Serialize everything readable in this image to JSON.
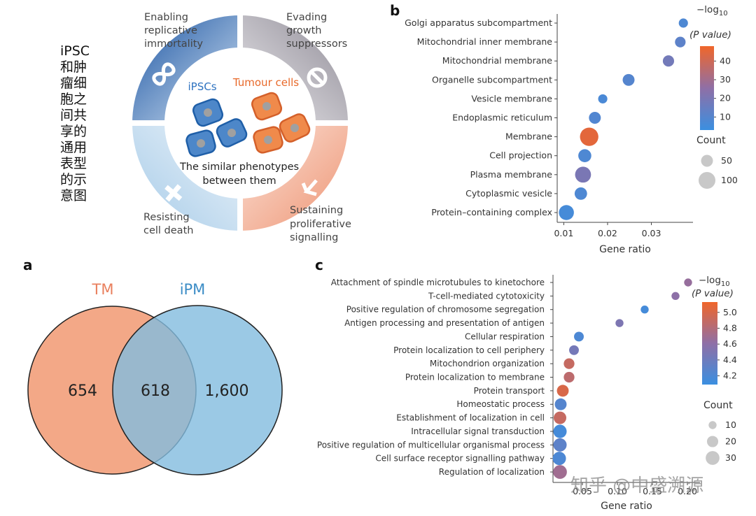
{
  "side_caption": "iPSC和肿瘤细胞之间共享的通用表型的示意图",
  "diagram": {
    "quadrants": [
      [
        "Enabling",
        "replicative",
        "immortality"
      ],
      [
        "Evading",
        "growth",
        "suppressors"
      ],
      [
        "Resisting",
        "cell death"
      ],
      [
        "Sustaining",
        "proliferative",
        "signalling"
      ]
    ],
    "ipsc_label": "iPSCs",
    "tumour_label": "Tumour cells",
    "center_text": [
      "The similar phenotypes",
      "between them"
    ]
  },
  "venn": {
    "panel_label": "a",
    "set_labels": [
      "TM",
      "iPM"
    ],
    "counts": [
      "654",
      "618",
      "1,600"
    ]
  },
  "watermark": "知乎 @中盛溯源",
  "chart_data": [
    {
      "type": "scatter",
      "panel_label": "b",
      "categories": [
        "Golgi apparatus subcompartment",
        "Mitochondrial inner membrane",
        "Mitochondrial membrane",
        "Organelle subcompartment",
        "Vesicle membrane",
        "Endoplasmic reticulum",
        "Membrane",
        "Cell projection",
        "Plasma membrane",
        "Cytoplasmic vesicle",
        "Protein–containing complex"
      ],
      "values": [
        0.0373,
        0.0366,
        0.0339,
        0.0248,
        0.0189,
        0.0171,
        0.0158,
        0.0148,
        0.0144,
        0.0139,
        0.0106
      ],
      "pvalue_log": [
        8,
        12,
        18,
        10,
        7,
        9,
        45,
        8,
        20,
        8,
        6
      ],
      "counts": [
        30,
        40,
        45,
        50,
        30,
        50,
        120,
        60,
        90,
        55,
        80
      ],
      "xlabel": "Gene ratio",
      "xlim": [
        0.0085,
        0.0395
      ],
      "xticks": [
        0.01,
        0.02,
        0.03
      ],
      "colorbar": {
        "title": "−log",
        "title_sub": "10",
        "title_tail": "(P value)",
        "lim": [
          3,
          48
        ],
        "ticks": [
          10,
          20,
          30,
          40
        ],
        "colormap": [
          "#3b8fe0",
          "#8f6fa6",
          "#f0662a"
        ]
      },
      "size_legend": {
        "title": "Count",
        "ticks": [
          50,
          100
        ]
      }
    },
    {
      "type": "scatter",
      "panel_label": "c",
      "categories": [
        "Attachment of spindle microtubules to kinetochore",
        "T-cell-mediated cytotoxicity",
        "Positive regulation of chromosome segregation",
        "Antigen processing and presentation of  antigen",
        "Cellular respiration",
        "Protein localization to cell periphery",
        "Mitochondrion organization",
        "Protein localization to membrane",
        "Protein transport",
        "Homeostatic process",
        "Establishment of localization in cell",
        "Intracellular signal transduction",
        "Positive regulation of multicellular organismal process",
        "Cell surface receptor signalling pathway",
        "Regulation of localization"
      ],
      "values": [
        0.201,
        0.183,
        0.139,
        0.103,
        0.045,
        0.038,
        0.031,
        0.031,
        0.022,
        0.019,
        0.018,
        0.018,
        0.018,
        0.017,
        0.018
      ],
      "pvalue_log": [
        4.65,
        4.6,
        4.15,
        4.5,
        4.2,
        4.45,
        4.9,
        4.85,
        5.0,
        4.25,
        4.9,
        4.15,
        4.3,
        4.2,
        4.7
      ],
      "counts": [
        10,
        10,
        10,
        10,
        15,
        15,
        18,
        18,
        22,
        22,
        25,
        28,
        28,
        28,
        30
      ],
      "xlabel": "Gene ratio",
      "xlim": [
        0.008,
        0.218
      ],
      "xticks": [
        0.05,
        {
          "value": 0.1,
          "label": "0.10"
        },
        0.15,
        {
          "value": 0.2,
          "label": "0.20"
        }
      ],
      "colorbar": {
        "title": "−log",
        "title_sub": "10",
        "title_tail": "(P value)",
        "lim": [
          4.09,
          5.13
        ],
        "ticks": [
          {
            "value": 5,
            "label": "5.0"
          },
          4.8,
          4.6,
          4.4,
          4.2
        ],
        "colormap": [
          "#3b8fe0",
          "#8f6fa6",
          "#f0662a"
        ]
      },
      "size_legend": {
        "title": "Count",
        "ticks": [
          10,
          20,
          30
        ]
      }
    }
  ]
}
